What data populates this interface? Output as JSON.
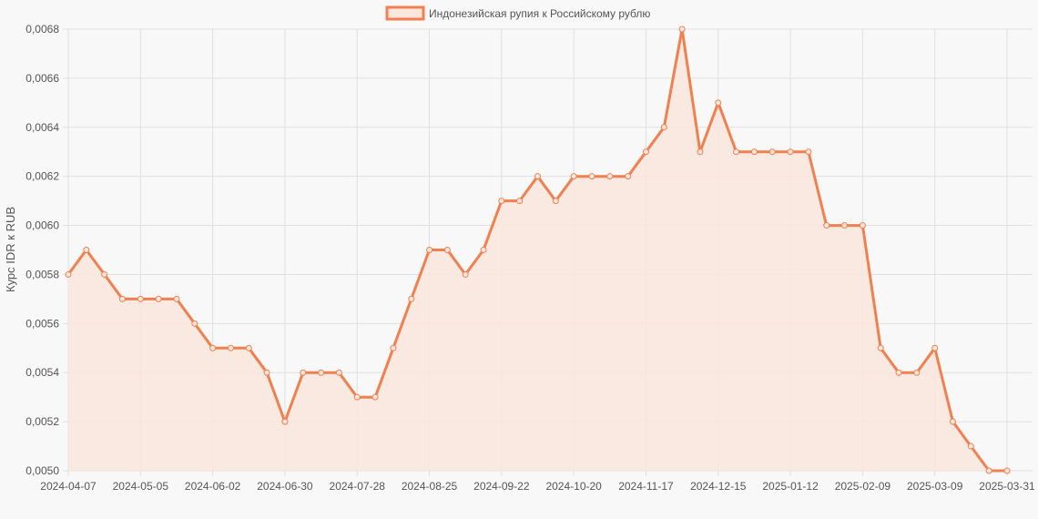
{
  "chart_data": {
    "type": "area",
    "legend": {
      "label": "Индонезийская рупия к Российскому рублю",
      "position": "top-center"
    },
    "ylabel": "Курс IDR к RUB",
    "xlabel": "",
    "grid": true,
    "colors": {
      "line": "#f0804f",
      "fill": "#fae6dd",
      "grid": "#e0e0e0",
      "background": "#f8f8f8"
    },
    "ylim": [
      0.005,
      0.0068
    ],
    "y_ticks": [
      "0,0050",
      "0,0052",
      "0,0054",
      "0,0056",
      "0,0058",
      "0,0060",
      "0,0062",
      "0,0064",
      "0,0066",
      "0,0068"
    ],
    "x_ticks": [
      "2024-04-07",
      "2024-05-05",
      "2024-06-02",
      "2024-06-30",
      "2024-07-28",
      "2024-08-25",
      "2024-09-22",
      "2024-10-20",
      "2024-11-17",
      "2024-12-15",
      "2025-01-12",
      "2025-02-09",
      "2025-03-09",
      "2025-03-31"
    ],
    "x_tick_points": [
      0,
      4,
      8,
      12,
      16,
      20,
      24,
      28,
      32,
      36,
      40,
      44,
      48,
      52
    ],
    "dates": [
      "2024-04-07",
      "2024-04-14",
      "2024-04-21",
      "2024-04-28",
      "2024-05-05",
      "2024-05-12",
      "2024-05-19",
      "2024-05-26",
      "2024-06-02",
      "2024-06-09",
      "2024-06-16",
      "2024-06-23",
      "2024-06-30",
      "2024-07-07",
      "2024-07-14",
      "2024-07-21",
      "2024-07-28",
      "2024-08-04",
      "2024-08-11",
      "2024-08-18",
      "2024-08-25",
      "2024-09-01",
      "2024-09-08",
      "2024-09-15",
      "2024-09-22",
      "2024-09-29",
      "2024-10-06",
      "2024-10-13",
      "2024-10-20",
      "2024-10-27",
      "2024-11-03",
      "2024-11-10",
      "2024-11-17",
      "2024-11-24",
      "2024-12-01",
      "2024-12-08",
      "2024-12-15",
      "2024-12-22",
      "2024-12-29",
      "2025-01-05",
      "2025-01-12",
      "2025-01-19",
      "2025-01-26",
      "2025-02-02",
      "2025-02-09",
      "2025-02-16",
      "2025-02-23",
      "2025-03-02",
      "2025-03-09",
      "2025-03-16",
      "2025-03-23",
      "2025-03-30",
      "2025-03-31"
    ],
    "values": [
      0.0058,
      0.0059,
      0.0058,
      0.0057,
      0.0057,
      0.0057,
      0.0057,
      0.0056,
      0.0055,
      0.0055,
      0.0055,
      0.0054,
      0.0052,
      0.0054,
      0.0054,
      0.0054,
      0.0053,
      0.0053,
      0.0055,
      0.0057,
      0.0059,
      0.0059,
      0.0058,
      0.0059,
      0.0061,
      0.0061,
      0.0062,
      0.0061,
      0.0062,
      0.0062,
      0.0062,
      0.0062,
      0.0063,
      0.0064,
      0.0068,
      0.0063,
      0.0065,
      0.0063,
      0.0063,
      0.0063,
      0.0063,
      0.0063,
      0.006,
      0.006,
      0.006,
      0.0055,
      0.0054,
      0.0054,
      0.0055,
      0.0052,
      0.0051,
      0.005,
      0.005
    ]
  }
}
